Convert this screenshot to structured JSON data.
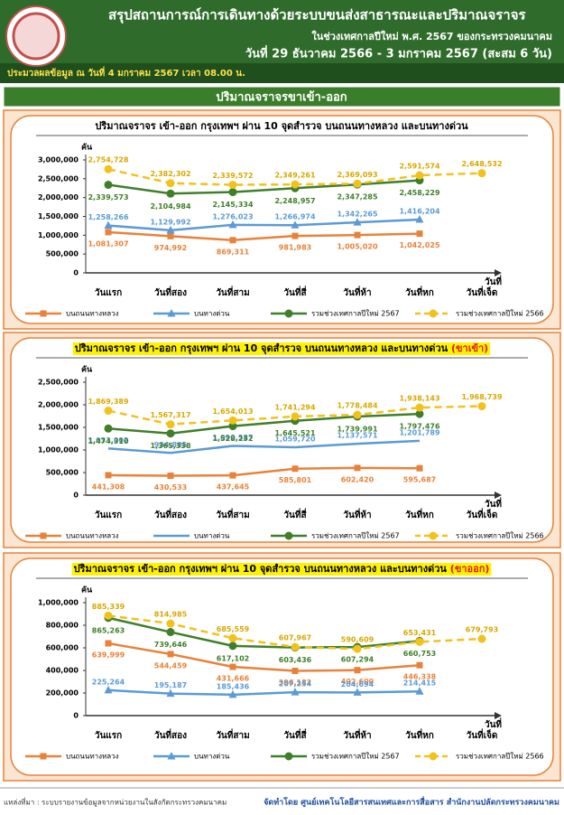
{
  "header": {
    "title": "สรุปสถานการณ์การเดินทางด้วยระบบขนส่งสาธารณะและปริมาณจราจร",
    "subtitle": "ในช่วงเทศกาลปีใหม่ พ.ศ. 2567 ของกระทรวงคมนาคม",
    "period": "วันที่ 29 ธันวาคม 2566 - 3 มกราคม 2567 (สะสม 6 วัน)",
    "data_note": "ประมวลผลข้อมูล ณ วันที่ 4 มกราคม 2567 เวลา 08.00 น.",
    "section_title": "ปริมาณจราจรขาเข้า-ออก"
  },
  "chart_data": [
    {
      "type": "line",
      "title": "ปริมาณจราจร เข้า-ออก กรุงเทพฯ ผ่าน 10 จุดสำรวจ บนถนนทางหลวง และบนทางด่วน",
      "title_highlight": false,
      "y_unit": "คัน",
      "x_label": "วันที่",
      "categories": [
        "วันแรก",
        "วันที่สอง",
        "วันที่สาม",
        "วันที่สี่",
        "วันที่ห้า",
        "วันที่หก",
        "วันที่เจ็ด"
      ],
      "ylim": [
        0,
        3000000
      ],
      "yticks": [
        0,
        {
          "value": 500000,
          "label": "500,000"
        },
        {
          "value": 1000000,
          "label": "1,000,000"
        },
        {
          "value": 1500000,
          "label": "1,500,000"
        },
        {
          "value": 2000000,
          "label": "2,000,000"
        },
        {
          "value": 2500000,
          "label": "2,500,000"
        },
        {
          "value": 3000000,
          "label": "3,000,000"
        }
      ],
      "series": [
        {
          "name": "บนถนนทางหลวง",
          "color": "#e8823a",
          "marker": "square",
          "dashed": false,
          "values": [
            1081307,
            974992,
            869311,
            981983,
            1005020,
            1042025,
            null
          ],
          "value_labels": [
            "1,081,307",
            "974,992",
            "869,311",
            "981,983",
            "1,005,020",
            "1,042,025",
            null
          ]
        },
        {
          "name": "บนทางด่วน",
          "color": "#5b9bd5",
          "marker": "triangle",
          "dashed": false,
          "values": [
            1258266,
            1129992,
            1276023,
            1266974,
            1342265,
            1416204,
            null
          ],
          "value_labels": [
            "1,258,266",
            "1,129,992",
            "1,276,023",
            "1,266,974",
            "1,342,265",
            "1,416,204",
            null
          ]
        },
        {
          "name": "รวมช่วงเทศกาลปีใหม่ 2567",
          "color": "#3f7f2a",
          "marker": "circle",
          "dashed": false,
          "values": [
            2339573,
            2104984,
            2145334,
            2248957,
            2347285,
            2458229,
            null
          ],
          "value_labels": [
            "2,339,573",
            "2,104,984",
            "2,145,334",
            "2,248,957",
            "2,347,285",
            "2,458,229",
            null
          ]
        },
        {
          "name": "รวมช่วงเทศกาลปีใหม่ 2566",
          "color": "#f2c11c",
          "marker": "circle",
          "dashed": true,
          "values": [
            2754728,
            2382302,
            2339572,
            2349261,
            2369093,
            2591574,
            2648532
          ],
          "value_labels": [
            "2,754,728",
            "2,382,302",
            "2,339,572",
            "2,349,261",
            "2,369,093",
            "2,591,574",
            "2,648,532"
          ]
        }
      ]
    },
    {
      "type": "line",
      "title": "ปริมาณจราจร เข้า-ออก กรุงเทพฯ ผ่าน 10 จุดสำรวจ บนถนนทางหลวง และบนทางด่วน",
      "title_tag": "(ขาเข้า)",
      "title_highlight": true,
      "y_unit": "คัน",
      "x_label": "วันที่",
      "categories": [
        "วันแรก",
        "วันที่สอง",
        "วันที่สาม",
        "วันที่สี่",
        "วันที่ห้า",
        "วันที่หก",
        "วันที่เจ็ด"
      ],
      "ylim": [
        0,
        2500000
      ],
      "yticks": [
        0,
        {
          "value": 500000,
          "label": "500,000"
        },
        {
          "value": 1000000,
          "label": "1,000,000"
        },
        {
          "value": 1500000,
          "label": "1,500,000"
        },
        {
          "value": 2000000,
          "label": "2,000,000"
        },
        {
          "value": 2500000,
          "label": "2,500,000"
        }
      ],
      "series": [
        {
          "name": "บนถนนทางหลวง",
          "color": "#e8823a",
          "marker": "square",
          "dashed": false,
          "values": [
            441308,
            430533,
            437645,
            585801,
            602420,
            595687,
            null
          ],
          "value_labels": [
            "441,308",
            "430,533",
            "437,645",
            "585,801",
            "602,420",
            "595,687",
            null
          ]
        },
        {
          "name": "บนทางด่วน",
          "color": "#5b9bd5",
          "marker": "line",
          "dashed": false,
          "values": [
            1033002,
            934805,
            1090587,
            1059720,
            1137571,
            1201789,
            null
          ],
          "value_labels": [
            "1,033,002",
            "934,805",
            "1,090,587",
            "1,059,720",
            "1,137,571",
            "1,201,789",
            null
          ]
        },
        {
          "name": "รวมช่วงเทศกาลปีใหม่ 2567",
          "color": "#3f7f2a",
          "marker": "circle",
          "dashed": false,
          "values": [
            1474310,
            1365338,
            1528232,
            1645521,
            1739991,
            1797476,
            null
          ],
          "value_labels": [
            "1,474,310",
            "1,365,338",
            "1,528,232",
            "1,645,521",
            "1,739,991",
            "1,797,476",
            null
          ]
        },
        {
          "name": "รวมช่วงเทศกาลปีใหม่ 2566",
          "color": "#f2c11c",
          "marker": "circle",
          "dashed": true,
          "values": [
            1869389,
            1567317,
            1654013,
            1741294,
            1778484,
            1938143,
            1968739
          ],
          "value_labels": [
            "1,869,389",
            "1,567,317",
            "1,654,013",
            "1,741,294",
            "1,778,484",
            "1,938,143",
            "1,968,739"
          ]
        }
      ]
    },
    {
      "type": "line",
      "title": "ปริมาณจราจร เข้า-ออก กรุงเทพฯ ผ่าน 10 จุดสำรวจ บนถนนทางหลวง และบนทางด่วน",
      "title_tag": "(ขาออก)",
      "title_highlight": true,
      "y_unit": "คัน",
      "x_label": "วันที่",
      "categories": [
        "วันแรก",
        "วันที่สอง",
        "วันที่สาม",
        "วันที่สี่",
        "วันที่ห้า",
        "วันที่หก",
        "วันที่เจ็ด"
      ],
      "ylim": [
        0,
        1000000
      ],
      "yticks": [
        0,
        {
          "value": 200000,
          "label": "200,000"
        },
        {
          "value": 400000,
          "label": "400,000"
        },
        {
          "value": 600000,
          "label": "600,000"
        },
        {
          "value": 800000,
          "label": "800,000"
        },
        {
          "value": 1000000,
          "label": "1,000,000"
        }
      ],
      "series": [
        {
          "name": "บนถนนทางหลวง",
          "color": "#e8823a",
          "marker": "square",
          "dashed": false,
          "values": [
            639999,
            544459,
            431666,
            396182,
            402600,
            446338,
            null
          ],
          "value_labels": [
            "639,999",
            "544,459",
            "431,666",
            "396,182",
            "402,600",
            "446,338",
            null
          ]
        },
        {
          "name": "บนทางด่วน",
          "color": "#5b9bd5",
          "marker": "triangle",
          "dashed": false,
          "values": [
            225264,
            195187,
            185436,
            207254,
            204694,
            214415,
            null
          ],
          "value_labels": [
            "225,264",
            "195,187",
            "185,436",
            "207,254",
            "204,694",
            "214,415",
            null
          ]
        },
        {
          "name": "รวมช่วงเทศกาลปีใหม่ 2567",
          "color": "#3f7f2a",
          "marker": "circle",
          "dashed": false,
          "values": [
            865263,
            739646,
            617102,
            603436,
            607294,
            660753,
            null
          ],
          "value_labels": [
            "865,263",
            "739,646",
            "617,102",
            "603,436",
            "607,294",
            "660,753",
            null
          ]
        },
        {
          "name": "รวมช่วงเทศกาลปีใหม่ 2566",
          "color": "#f2c11c",
          "marker": "circle",
          "dashed": true,
          "values": [
            885339,
            814985,
            685559,
            607967,
            590609,
            653431,
            679793
          ],
          "value_labels": [
            "885,339",
            "814,985",
            "685,559",
            "607,967",
            "590,609",
            "653,431",
            "679,793"
          ]
        }
      ]
    }
  ],
  "footer": {
    "source": "แหล่งที่มา : ระบบรายงานข้อมูลจากหน่วยงานในสังกัดกระทรวงคมนาคม",
    "credit": "จัดทำโดย ศูนย์เทคโนโลยีสารสนเทศและการสื่อสาร สำนักงานปลัดกระทรวงคมนาคม"
  }
}
